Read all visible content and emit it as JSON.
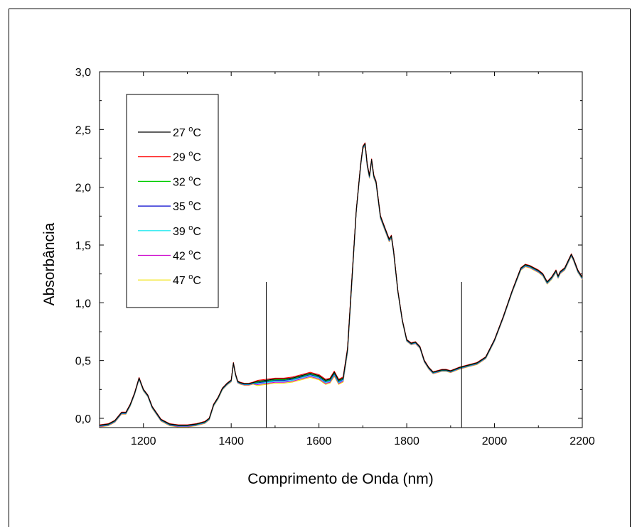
{
  "chart_data": {
    "type": "line",
    "title": "",
    "xlabel": "Comprimento de Onda (nm)",
    "ylabel": "Absorbância",
    "xlim": [
      1100,
      2200
    ],
    "ylim": [
      -0.08,
      3.0
    ],
    "x_ticks": [
      1200,
      1400,
      1600,
      1800,
      2000,
      2200
    ],
    "y_ticks": [
      0.0,
      0.5,
      1.0,
      1.5,
      2.0,
      2.5,
      3.0
    ],
    "y_tick_labels": [
      "0,0",
      "0,5",
      "1,0",
      "1,5",
      "2,0",
      "2,5",
      "3,0"
    ],
    "legend_position": "top-left",
    "grid": false,
    "vertical_markers": [
      {
        "x": 1480,
        "y_top": 1.18
      },
      {
        "x": 1925,
        "y_top": 1.18
      }
    ],
    "base_spectrum": {
      "x": [
        1100,
        1120,
        1135,
        1150,
        1160,
        1170,
        1180,
        1190,
        1200,
        1210,
        1220,
        1240,
        1260,
        1280,
        1300,
        1320,
        1340,
        1350,
        1360,
        1370,
        1380,
        1390,
        1400,
        1405,
        1410,
        1415,
        1420,
        1430,
        1440,
        1450,
        1460,
        1480,
        1500,
        1520,
        1540,
        1560,
        1580,
        1600,
        1615,
        1625,
        1635,
        1645,
        1655,
        1665,
        1675,
        1685,
        1695,
        1700,
        1705,
        1710,
        1715,
        1720,
        1725,
        1730,
        1740,
        1750,
        1760,
        1765,
        1770,
        1780,
        1790,
        1800,
        1810,
        1820,
        1830,
        1840,
        1850,
        1860,
        1870,
        1880,
        1890,
        1900,
        1920,
        1940,
        1960,
        1980,
        2000,
        2020,
        2040,
        2060,
        2070,
        2080,
        2090,
        2100,
        2110,
        2120,
        2130,
        2140,
        2145,
        2150,
        2160,
        2170,
        2175,
        2180,
        2190,
        2200
      ],
      "y": [
        -0.06,
        -0.05,
        -0.02,
        0.05,
        0.05,
        0.12,
        0.22,
        0.35,
        0.25,
        0.2,
        0.1,
        -0.01,
        -0.05,
        -0.06,
        -0.06,
        -0.05,
        -0.03,
        0.0,
        0.12,
        0.18,
        0.26,
        0.3,
        0.33,
        0.48,
        0.38,
        0.32,
        0.31,
        0.3,
        0.3,
        0.31,
        0.32,
        0.33,
        0.34,
        0.34,
        0.35,
        0.37,
        0.39,
        0.37,
        0.33,
        0.34,
        0.4,
        0.33,
        0.35,
        0.6,
        1.2,
        1.8,
        2.2,
        2.35,
        2.38,
        2.2,
        2.1,
        2.24,
        2.1,
        2.05,
        1.75,
        1.65,
        1.55,
        1.58,
        1.45,
        1.1,
        0.85,
        0.68,
        0.65,
        0.66,
        0.62,
        0.5,
        0.44,
        0.4,
        0.41,
        0.42,
        0.42,
        0.41,
        0.44,
        0.46,
        0.48,
        0.53,
        0.68,
        0.88,
        1.1,
        1.3,
        1.33,
        1.32,
        1.3,
        1.28,
        1.25,
        1.18,
        1.22,
        1.28,
        1.23,
        1.27,
        1.3,
        1.38,
        1.42,
        1.38,
        1.28,
        1.22
      ]
    },
    "series": [
      {
        "name": "27 °C",
        "label": "27",
        "unit": "C",
        "color": "#000000",
        "shift": 0.0
      },
      {
        "name": "29 °C",
        "label": "29",
        "unit": "C",
        "color": "#ff0000",
        "shift": 0.008
      },
      {
        "name": "32 °C",
        "label": "32",
        "unit": "C",
        "color": "#00cc00",
        "shift": -0.006
      },
      {
        "name": "35 °C",
        "label": "35",
        "unit": "C",
        "color": "#0000cc",
        "shift": -0.012
      },
      {
        "name": "39 °C",
        "label": "39",
        "unit": "C",
        "color": "#00e5ee",
        "shift": -0.02
      },
      {
        "name": "42 °C",
        "label": "42",
        "unit": "C",
        "color": "#cc00cc",
        "shift": -0.028
      },
      {
        "name": "47 °C",
        "label": "47",
        "unit": "C",
        "color": "#f0e000",
        "shift": -0.036
      }
    ]
  }
}
